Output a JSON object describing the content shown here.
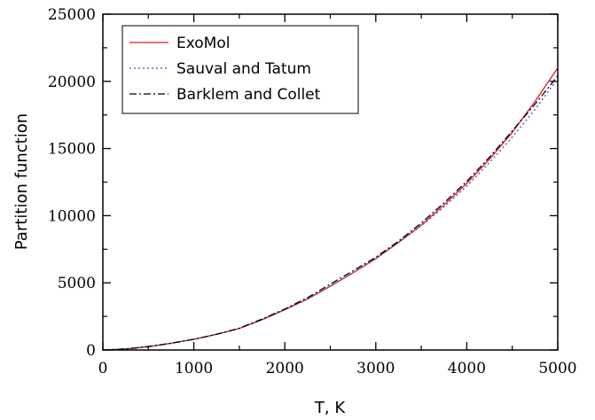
{
  "chart_data": {
    "type": "line",
    "title": "",
    "xlabel": "T, K",
    "ylabel": "Partition function",
    "xlim": [
      0,
      5000
    ],
    "ylim": [
      0,
      25000
    ],
    "x_ticks": [
      0,
      1000,
      2000,
      3000,
      4000,
      5000
    ],
    "y_ticks": [
      0,
      5000,
      10000,
      15000,
      20000,
      25000
    ],
    "x_tick_labels": [
      "0",
      "1000",
      "2000",
      "3000",
      "4000",
      "5000"
    ],
    "y_tick_labels": [
      "0",
      "5000",
      "10000",
      "15000",
      "20000",
      "25000"
    ],
    "grid": false,
    "legend_position": "top-left",
    "series": [
      {
        "name": "ExoMol",
        "color": "#e0191e",
        "style": "solid",
        "x": [
          0,
          250,
          500,
          750,
          1000,
          1250,
          1500,
          1750,
          2000,
          2250,
          2500,
          2750,
          3000,
          3250,
          3500,
          3750,
          4000,
          4250,
          4500,
          4750,
          5000
        ],
        "y": [
          0,
          80,
          250,
          500,
          800,
          1170,
          1600,
          2250,
          3000,
          3800,
          4750,
          5750,
          6800,
          8000,
          9300,
          10800,
          12400,
          14200,
          16200,
          18500,
          21000
        ]
      },
      {
        "name": "Sauval and Tatum",
        "color": "#3b4bd6",
        "style": "dotted",
        "x": [
          0,
          250,
          500,
          750,
          1000,
          1250,
          1500,
          1750,
          2000,
          2250,
          2500,
          2750,
          3000,
          3250,
          3500,
          3750,
          4000,
          4250,
          4500,
          4750,
          5000
        ],
        "y": [
          0,
          80,
          250,
          500,
          800,
          1170,
          1600,
          2250,
          3000,
          3800,
          4750,
          5750,
          6800,
          8000,
          9250,
          10650,
          12200,
          13950,
          15850,
          17900,
          20200
        ]
      },
      {
        "name": "Barklem and Collet",
        "color": "#000000",
        "style": "dashdot",
        "x": [
          0,
          250,
          500,
          750,
          1000,
          1250,
          1500,
          1750,
          2000,
          2250,
          2500,
          2750,
          3000,
          3250,
          3500,
          3750,
          4000,
          4250,
          4500,
          4750,
          5000
        ],
        "y": [
          0,
          80,
          250,
          500,
          800,
          1170,
          1620,
          2300,
          3050,
          3900,
          4900,
          5900,
          6900,
          8100,
          9450,
          10950,
          12550,
          14350,
          16300,
          18300,
          20400
        ]
      }
    ]
  }
}
